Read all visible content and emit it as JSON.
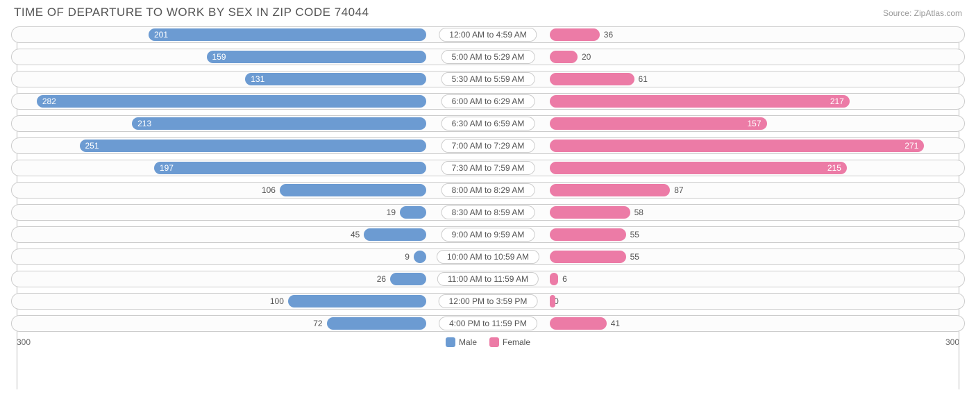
{
  "title": "TIME OF DEPARTURE TO WORK BY SEX IN ZIP CODE 74044",
  "source": "Source: ZipAtlas.com",
  "chart": {
    "type": "diverging-bar",
    "max": 300,
    "male_color": "#6c9bd2",
    "female_color": "#ec7ba6",
    "track_border": "#cccccc",
    "track_bg": "#fcfcfc",
    "text_color": "#555555",
    "label_threshold_inside": 120,
    "rows": [
      {
        "label": "12:00 AM to 4:59 AM",
        "male": 201,
        "female": 36
      },
      {
        "label": "5:00 AM to 5:29 AM",
        "male": 159,
        "female": 20
      },
      {
        "label": "5:30 AM to 5:59 AM",
        "male": 131,
        "female": 61
      },
      {
        "label": "6:00 AM to 6:29 AM",
        "male": 282,
        "female": 217
      },
      {
        "label": "6:30 AM to 6:59 AM",
        "male": 213,
        "female": 157
      },
      {
        "label": "7:00 AM to 7:29 AM",
        "male": 251,
        "female": 271
      },
      {
        "label": "7:30 AM to 7:59 AM",
        "male": 197,
        "female": 215
      },
      {
        "label": "8:00 AM to 8:29 AM",
        "male": 106,
        "female": 87
      },
      {
        "label": "8:30 AM to 8:59 AM",
        "male": 19,
        "female": 58
      },
      {
        "label": "9:00 AM to 9:59 AM",
        "male": 45,
        "female": 55
      },
      {
        "label": "10:00 AM to 10:59 AM",
        "male": 9,
        "female": 55
      },
      {
        "label": "11:00 AM to 11:59 AM",
        "male": 26,
        "female": 6
      },
      {
        "label": "12:00 PM to 3:59 PM",
        "male": 100,
        "female": 0
      },
      {
        "label": "4:00 PM to 11:59 PM",
        "male": 72,
        "female": 41
      }
    ],
    "center_label_halfwidth_pct": 13
  },
  "legend": {
    "male": "Male",
    "female": "Female"
  }
}
